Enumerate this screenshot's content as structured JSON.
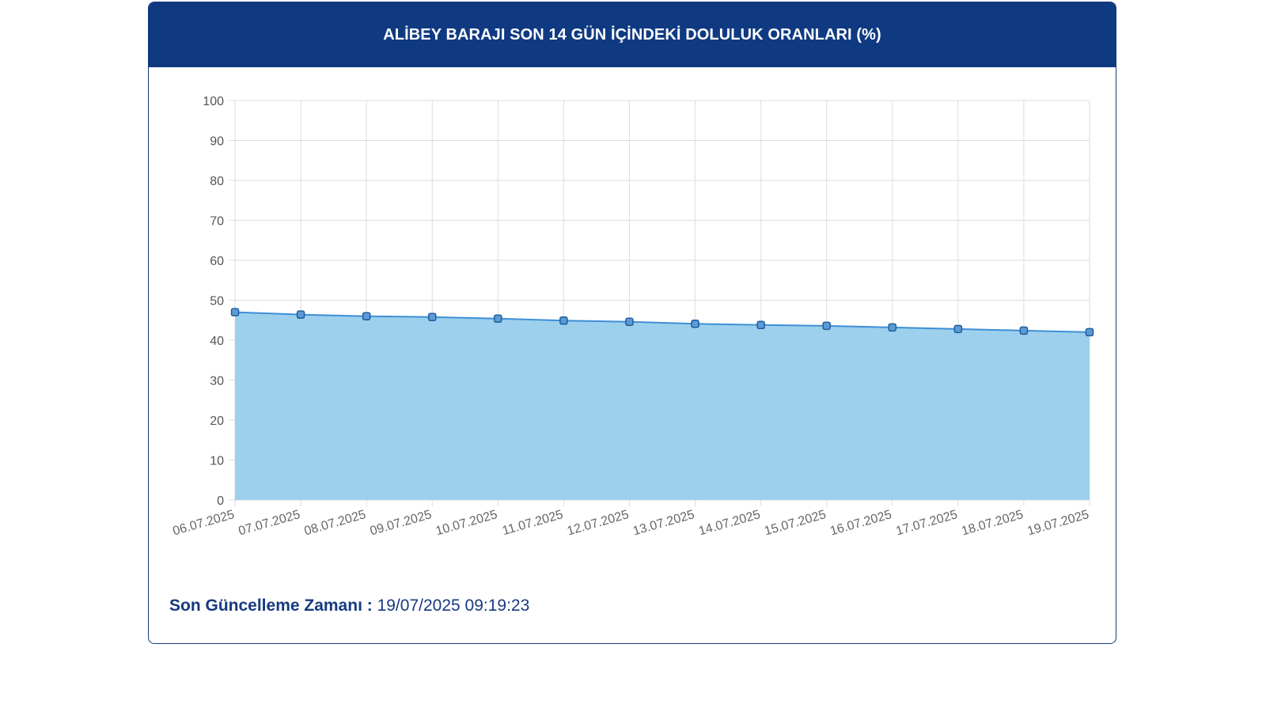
{
  "header": {
    "title": "ALİBEY BARAJI SON 14 GÜN İÇİNDEKİ DOLULUK ORANLARI (%)"
  },
  "footer": {
    "label": "Son Güncelleme Zamanı :",
    "value": "19/07/2025 09:19:23"
  },
  "colors": {
    "header_bg": "#0f3a82",
    "card_border": "#173a80",
    "area_fill": "#9dd0ed",
    "line": "#3e8fd6",
    "marker_fill": "#5b9bd5",
    "marker_stroke": "#1f5c9e",
    "grid": "#dddddd",
    "footer_text": "#173a80"
  },
  "chart_data": {
    "type": "area",
    "title": "ALİBEY BARAJI SON 14 GÜN İÇİNDEKİ DOLULUK ORANLARI (%)",
    "categories": [
      "06.07.2025",
      "07.07.2025",
      "08.07.2025",
      "09.07.2025",
      "10.07.2025",
      "11.07.2025",
      "12.07.2025",
      "13.07.2025",
      "14.07.2025",
      "15.07.2025",
      "16.07.2025",
      "17.07.2025",
      "18.07.2025",
      "19.07.2025"
    ],
    "values": [
      47.0,
      46.4,
      46.0,
      45.8,
      45.4,
      44.9,
      44.6,
      44.1,
      43.8,
      43.6,
      43.2,
      42.8,
      42.4,
      42.0
    ],
    "ylim": [
      0,
      100
    ],
    "yticks": [
      0,
      10,
      20,
      30,
      40,
      50,
      60,
      70,
      80,
      90,
      100
    ],
    "xlabel": "",
    "ylabel": "",
    "grid": true,
    "legend": "none"
  }
}
